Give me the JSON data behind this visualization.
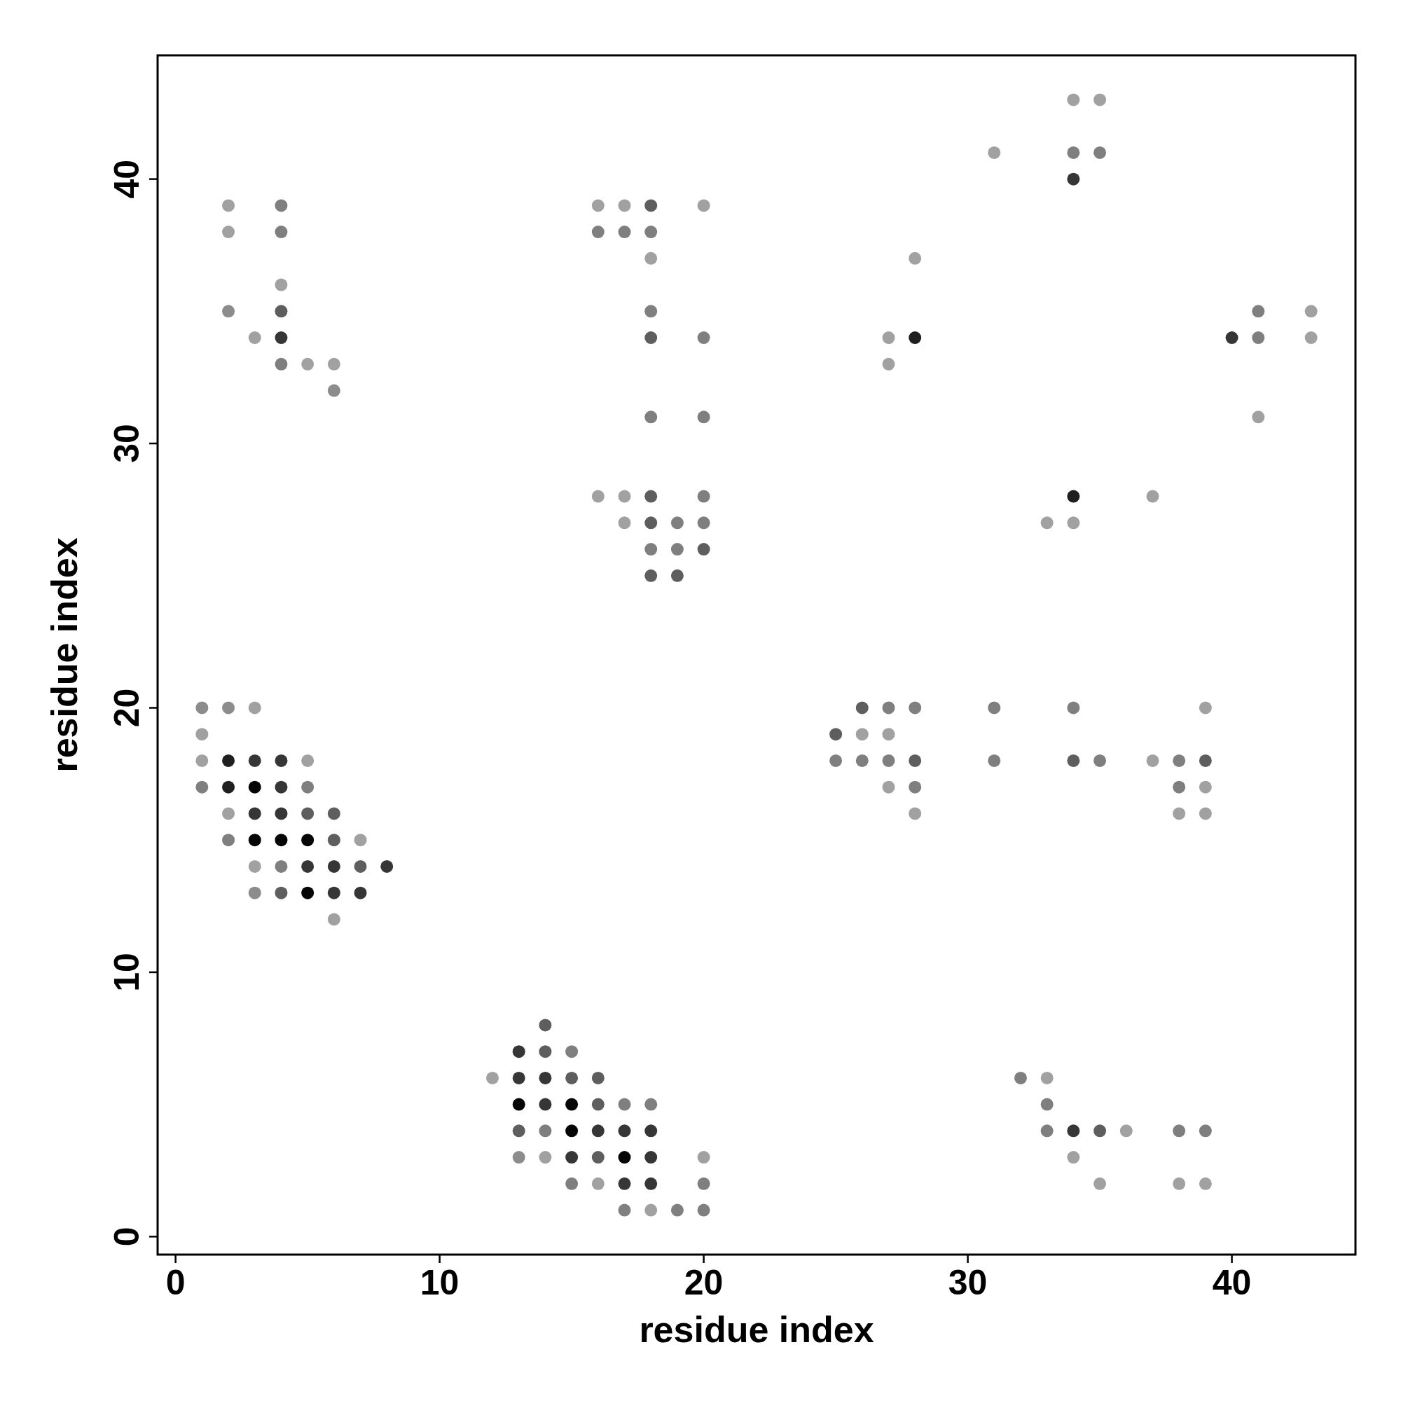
{
  "chart_data": {
    "type": "scatter",
    "xlabel": "residue index",
    "ylabel": "residue index",
    "xlim": [
      -0.68,
      44.68
    ],
    "ylim": [
      -0.68,
      44.68
    ],
    "xticks": [
      0,
      10,
      20,
      30,
      40
    ],
    "yticks": [
      0,
      10,
      20,
      30,
      40
    ],
    "grid": false,
    "marker": "circle",
    "series": [
      {
        "x": [
          2,
          4,
          2,
          4,
          4,
          2,
          4,
          3,
          4,
          4,
          5,
          6,
          6,
          1,
          2,
          3,
          1,
          1,
          2,
          3,
          4,
          5,
          1,
          2,
          3,
          4,
          5,
          2,
          3,
          4,
          5,
          6,
          2,
          3,
          4,
          5,
          6,
          7,
          3,
          4,
          5,
          6,
          7,
          8,
          3,
          4,
          5,
          6,
          7,
          6,
          14,
          13,
          14,
          15,
          12,
          13,
          14,
          15,
          16,
          13,
          14,
          15,
          16,
          17,
          18,
          13,
          14,
          15,
          16,
          17,
          18,
          13,
          14,
          15,
          16,
          17,
          18,
          20,
          15,
          16,
          17,
          18,
          20,
          17,
          18,
          19,
          20,
          16,
          17,
          18,
          20,
          16,
          17,
          18,
          18,
          18,
          18,
          20,
          18,
          20,
          16,
          17,
          18,
          20,
          17,
          18,
          19,
          20,
          18,
          19,
          20,
          18,
          19,
          26,
          27,
          28,
          25,
          26,
          27,
          25,
          26,
          27,
          28,
          27,
          28,
          28,
          28,
          27,
          28,
          27,
          31,
          34,
          39,
          31,
          34,
          35,
          37,
          38,
          39,
          38,
          39,
          38,
          39,
          34,
          37,
          33,
          34,
          34,
          35,
          31,
          34,
          35,
          34,
          40,
          41,
          41,
          43,
          43,
          41,
          32,
          33,
          33,
          33,
          34,
          35,
          36,
          34,
          35,
          38,
          39,
          38,
          39
        ],
        "values": [
          39,
          39,
          38,
          38,
          36,
          35,
          35,
          34,
          34,
          33,
          33,
          33,
          32,
          20,
          20,
          20,
          19,
          18,
          18,
          18,
          18,
          18,
          17,
          17,
          17,
          17,
          17,
          16,
          16,
          16,
          16,
          16,
          15,
          15,
          15,
          15,
          15,
          15,
          14,
          14,
          14,
          14,
          14,
          14,
          13,
          13,
          13,
          13,
          13,
          12,
          8,
          7,
          7,
          7,
          6,
          6,
          6,
          6,
          6,
          5,
          5,
          5,
          5,
          5,
          5,
          4,
          4,
          4,
          4,
          4,
          4,
          3,
          3,
          3,
          3,
          3,
          3,
          3,
          2,
          2,
          2,
          2,
          2,
          1,
          1,
          1,
          1,
          39,
          39,
          39,
          39,
          38,
          38,
          38,
          37,
          35,
          34,
          34,
          31,
          31,
          28,
          28,
          28,
          28,
          27,
          27,
          27,
          27,
          26,
          26,
          26,
          25,
          25,
          20,
          20,
          20,
          19,
          19,
          19,
          18,
          18,
          18,
          18,
          17,
          17,
          16,
          37,
          34,
          34,
          33,
          20,
          20,
          20,
          18,
          18,
          18,
          18,
          18,
          18,
          17,
          17,
          16,
          16,
          28,
          28,
          27,
          27,
          43,
          43,
          41,
          41,
          41,
          40,
          34,
          35,
          34,
          35,
          34,
          31,
          6,
          6,
          5,
          4,
          4,
          4,
          4,
          3,
          2,
          4,
          4,
          2,
          2
        ],
        "colors": [
          "#a1a1a1",
          "#7f7f7f",
          "#a1a1a1",
          "#7f7f7f",
          "#a1a1a1",
          "#8c8c8c",
          "#5e5e5e",
          "#a1a1a1",
          "#363636",
          "#7f7f7f",
          "#a1a1a1",
          "#a1a1a1",
          "#8c8c8c",
          "#8c8c8c",
          "#8c8c8c",
          "#a1a1a1",
          "#a1a1a1",
          "#a1a1a1",
          "#1f1f1f",
          "#363636",
          "#363636",
          "#a1a1a1",
          "#7f7f7f",
          "#1f1f1f",
          "#050505",
          "#363636",
          "#7f7f7f",
          "#a1a1a1",
          "#363636",
          "#363636",
          "#5e5e5e",
          "#5e5e5e",
          "#7f7f7f",
          "#050505",
          "#050505",
          "#050505",
          "#5e5e5e",
          "#a1a1a1",
          "#a1a1a1",
          "#7f7f7f",
          "#363636",
          "#363636",
          "#5e5e5e",
          "#363636",
          "#8c8c8c",
          "#5e5e5e",
          "#050505",
          "#363636",
          "#363636",
          "#a1a1a1",
          "#5e5e5e",
          "#363636",
          "#5e5e5e",
          "#7f7f7f",
          "#a1a1a1",
          "#363636",
          "#363636",
          "#5e5e5e",
          "#5e5e5e",
          "#050505",
          "#363636",
          "#050505",
          "#5e5e5e",
          "#7f7f7f",
          "#7f7f7f",
          "#5e5e5e",
          "#7f7f7f",
          "#050505",
          "#363636",
          "#363636",
          "#363636",
          "#8c8c8c",
          "#a1a1a1",
          "#363636",
          "#5e5e5e",
          "#050505",
          "#363636",
          "#a1a1a1",
          "#7f7f7f",
          "#a1a1a1",
          "#363636",
          "#363636",
          "#7f7f7f",
          "#7f7f7f",
          "#a1a1a1",
          "#7f7f7f",
          "#7f7f7f",
          "#a1a1a1",
          "#a1a1a1",
          "#5e5e5e",
          "#a1a1a1",
          "#7f7f7f",
          "#7f7f7f",
          "#7f7f7f",
          "#a1a1a1",
          "#7f7f7f",
          "#5e5e5e",
          "#7f7f7f",
          "#7f7f7f",
          "#7f7f7f",
          "#a1a1a1",
          "#a1a1a1",
          "#5e5e5e",
          "#7f7f7f",
          "#a1a1a1",
          "#5e5e5e",
          "#7f7f7f",
          "#7f7f7f",
          "#7f7f7f",
          "#7f7f7f",
          "#5e5e5e",
          "#5e5e5e",
          "#5e5e5e",
          "#5e5e5e",
          "#7f7f7f",
          "#7f7f7f",
          "#5e5e5e",
          "#a1a1a1",
          "#a1a1a1",
          "#7f7f7f",
          "#7f7f7f",
          "#7f7f7f",
          "#5e5e5e",
          "#a1a1a1",
          "#7f7f7f",
          "#a1a1a1",
          "#a1a1a1",
          "#a1a1a1",
          "#1f1f1f",
          "#a1a1a1",
          "#7f7f7f",
          "#7f7f7f",
          "#a1a1a1",
          "#7f7f7f",
          "#5e5e5e",
          "#7f7f7f",
          "#a1a1a1",
          "#7f7f7f",
          "#5e5e5e",
          "#7f7f7f",
          "#a1a1a1",
          "#a1a1a1",
          "#a1a1a1",
          "#1f1f1f",
          "#a1a1a1",
          "#a1a1a1",
          "#a1a1a1",
          "#a1a1a1",
          "#a1a1a1",
          "#a1a1a1",
          "#7f7f7f",
          "#7f7f7f",
          "#363636",
          "#363636",
          "#7f7f7f",
          "#7f7f7f",
          "#a1a1a1",
          "#a1a1a1",
          "#a1a1a1",
          "#7f7f7f",
          "#a1a1a1",
          "#7f7f7f",
          "#7f7f7f",
          "#363636",
          "#5e5e5e",
          "#a1a1a1",
          "#a1a1a1",
          "#a1a1a1",
          "#7f7f7f",
          "#7f7f7f",
          "#a1a1a1",
          "#a1a1a1"
        ]
      }
    ]
  }
}
